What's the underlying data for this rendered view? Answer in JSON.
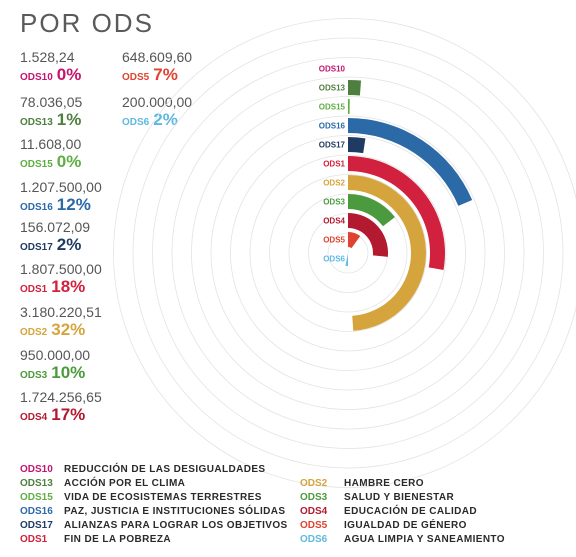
{
  "title": "POR ODS",
  "stats": [
    {
      "code": "ODS10",
      "amount": "1.528,24",
      "percent": "0%",
      "color": "#c5146f"
    },
    {
      "code": "ODS13",
      "amount": "78.036,05",
      "percent": "1%",
      "color": "#4f7f3e"
    },
    {
      "code": "ODS15",
      "amount": "11.608,00",
      "percent": "0%",
      "color": "#5fae42"
    },
    {
      "code": "ODS16",
      "amount": "1.207.500,00",
      "percent": "12%",
      "color": "#2b6aa7"
    },
    {
      "code": "ODS17",
      "amount": "156.072,09",
      "percent": "2%",
      "color": "#1f3b64"
    },
    {
      "code": "ODS1",
      "amount": "1.807.500,00",
      "percent": "18%",
      "color": "#d1213e"
    },
    {
      "code": "ODS2",
      "amount": "3.180.220,51",
      "percent": "32%",
      "color": "#d6a43c"
    },
    {
      "code": "ODS3",
      "amount": "950.000,00",
      "percent": "10%",
      "color": "#4c9a3e"
    },
    {
      "code": "ODS4",
      "amount": "1.724.256,65",
      "percent": "17%",
      "color": "#b3192f"
    },
    {
      "code": "ODS5",
      "amount": "648.609,60",
      "percent": "7%",
      "color": "#e0432f"
    },
    {
      "code": "ODS6",
      "amount": "200.000,00",
      "percent": "2%",
      "color": "#5db9e0"
    }
  ],
  "legend": [
    {
      "code": "ODS10",
      "description": "REDUCCIÓN DE LAS DESIGUALDADES",
      "color": "#c5146f"
    },
    {
      "code": "ODS13",
      "description": "ACCIÓN POR EL CLIMA",
      "color": "#4f7f3e"
    },
    {
      "code": "ODS15",
      "description": "VIDA DE ECOSISTEMAS TERRESTRES",
      "color": "#5fae42"
    },
    {
      "code": "ODS16",
      "description": "PAZ, JUSTICIA E INSTITUCIONES SÓLIDAS",
      "color": "#2b6aa7"
    },
    {
      "code": "ODS17",
      "description": "ALIANZAS PARA LOGRAR LOS OBJETIVOS",
      "color": "#1f3b64"
    },
    {
      "code": "ODS1",
      "description": "FIN DE LA POBREZA",
      "color": "#d1213e"
    },
    {
      "code": "ODS2",
      "description": "HAMBRE CERO",
      "color": "#d6a43c"
    },
    {
      "code": "ODS3",
      "description": "SALUD Y BIENESTAR",
      "color": "#4c9a3e"
    },
    {
      "code": "ODS4",
      "description": "EDUCACIÓN DE CALIDAD",
      "color": "#b3192f"
    },
    {
      "code": "ODS5",
      "description": "IGUALDAD DE GÉNERO",
      "color": "#e0432f"
    },
    {
      "code": "ODS6",
      "description": "AGUA LIMPIA Y SANEAMIENTO",
      "color": "#5db9e0"
    }
  ],
  "chart_data": {
    "type": "radial-bar",
    "title": "POR ODS",
    "categories": [
      "ODS10",
      "ODS13",
      "ODS15",
      "ODS16",
      "ODS17",
      "ODS1",
      "ODS2",
      "ODS3",
      "ODS4",
      "ODS5",
      "ODS6"
    ],
    "values": [
      1528.24,
      78036.05,
      11608.0,
      1207500.0,
      156072.09,
      1807500.0,
      3180220.51,
      950000.0,
      1724256.65,
      648609.6,
      200000.0
    ],
    "percent": [
      0,
      1,
      0,
      12,
      2,
      18,
      32,
      10,
      17,
      7,
      2
    ],
    "colors": [
      "#c5146f",
      "#4f7f3e",
      "#5fae42",
      "#2b6aa7",
      "#1f3b64",
      "#d1213e",
      "#d6a43c",
      "#4c9a3e",
      "#b3192f",
      "#e0432f",
      "#5db9e0"
    ],
    "scale_max_value": 6500000,
    "grid": true
  }
}
